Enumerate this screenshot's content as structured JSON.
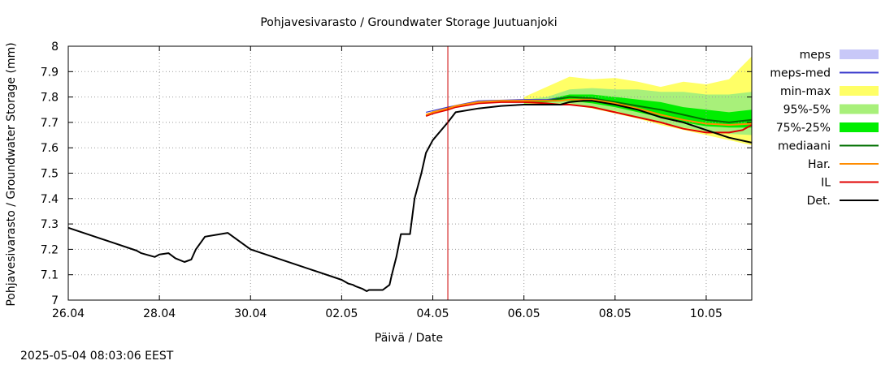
{
  "chart_data": {
    "type": "line",
    "title": "Pohjavesivarasto / Groundwater Storage   Juutuanjoki",
    "xlabel": "Päivä / Date",
    "ylabel": "Pohjavesivarasto / Groundwater Storage (mm)",
    "timestamp": "2025-05-04 08:03:06 EEST",
    "xlim": [
      0,
      15
    ],
    "ylim": [
      7.0,
      8.0
    ],
    "x_unit": "days since 26.04",
    "x_ticks": [
      {
        "x": 0,
        "label": "26.04"
      },
      {
        "x": 2,
        "label": "28.04"
      },
      {
        "x": 4,
        "label": "30.04"
      },
      {
        "x": 6,
        "label": "02.05"
      },
      {
        "x": 8,
        "label": "04.05"
      },
      {
        "x": 10,
        "label": "06.05"
      },
      {
        "x": 12,
        "label": "08.05"
      },
      {
        "x": 14,
        "label": "10.05"
      }
    ],
    "y_ticks": [
      {
        "y": 7.0,
        "label": "7"
      },
      {
        "y": 7.1,
        "label": "7.1"
      },
      {
        "y": 7.2,
        "label": "7.2"
      },
      {
        "y": 7.3,
        "label": "7.3"
      },
      {
        "y": 7.4,
        "label": "7.4"
      },
      {
        "y": 7.5,
        "label": "7.5"
      },
      {
        "y": 7.6,
        "label": "7.6"
      },
      {
        "y": 7.7,
        "label": "7.7"
      },
      {
        "y": 7.8,
        "label": "7.8"
      },
      {
        "y": 7.9,
        "label": "7.9"
      },
      {
        "y": 8.0,
        "label": "8"
      }
    ],
    "grid": true,
    "legend_position": "right",
    "current_time_x": 8.33,
    "colors": {
      "meps": "#c8c8f8",
      "meps_med": "#3c3ccc",
      "minmax": "#ffff66",
      "p95_5": "#a8f07a",
      "p75_25": "#00ee00",
      "mediaani": "#007000",
      "har": "#ff8c00",
      "il": "#e00000",
      "det": "#000000",
      "vline": "#cc0000",
      "grid": "#999999"
    },
    "legend": [
      {
        "key": "meps",
        "label": "meps",
        "style": "fill"
      },
      {
        "key": "meps_med",
        "label": "meps-med",
        "style": "line"
      },
      {
        "key": "minmax",
        "label": "min-max",
        "style": "fill"
      },
      {
        "key": "p95_5",
        "label": "95%-5%",
        "style": "fill"
      },
      {
        "key": "p75_25",
        "label": "75%-25%",
        "style": "fill"
      },
      {
        "key": "mediaani",
        "label": "mediaani",
        "style": "line"
      },
      {
        "key": "har",
        "label": "Har.",
        "style": "line"
      },
      {
        "key": "il",
        "label": "IL",
        "style": "line"
      },
      {
        "key": "det",
        "label": "Det.",
        "style": "line"
      }
    ],
    "bands": [
      {
        "name": "min-max",
        "key": "minmax",
        "x": [
          10.0,
          10.5,
          11.0,
          11.5,
          12.0,
          12.5,
          13.0,
          13.5,
          14.0,
          14.5,
          15.0
        ],
        "upper": [
          7.8,
          7.84,
          7.88,
          7.87,
          7.875,
          7.86,
          7.84,
          7.86,
          7.85,
          7.87,
          7.96
        ],
        "lower": [
          7.77,
          7.77,
          7.77,
          7.755,
          7.735,
          7.715,
          7.69,
          7.67,
          7.65,
          7.63,
          7.61
        ]
      },
      {
        "name": "95%-5%",
        "key": "p95_5",
        "x": [
          10.0,
          10.5,
          11.0,
          11.5,
          12.0,
          12.5,
          13.0,
          13.5,
          14.0,
          14.5,
          15.0
        ],
        "upper": [
          7.79,
          7.8,
          7.83,
          7.835,
          7.83,
          7.83,
          7.82,
          7.82,
          7.81,
          7.81,
          7.82
        ],
        "lower": [
          7.775,
          7.775,
          7.775,
          7.76,
          7.745,
          7.72,
          7.7,
          7.68,
          7.665,
          7.655,
          7.65
        ]
      },
      {
        "name": "75%-25%",
        "key": "p75_25",
        "x": [
          10.0,
          10.5,
          11.0,
          11.5,
          12.0,
          12.5,
          13.0,
          13.5,
          14.0,
          14.5,
          15.0
        ],
        "upper": [
          7.785,
          7.79,
          7.81,
          7.81,
          7.8,
          7.79,
          7.78,
          7.76,
          7.75,
          7.74,
          7.75
        ],
        "lower": [
          7.775,
          7.78,
          7.785,
          7.775,
          7.76,
          7.74,
          7.72,
          7.7,
          7.685,
          7.68,
          7.68
        ]
      }
    ],
    "series": [
      {
        "name": "Det.",
        "key": "det",
        "width": 2,
        "x": [
          0.0,
          0.5,
          1.0,
          1.5,
          1.6,
          1.7,
          1.9,
          2.0,
          2.2,
          2.35,
          2.55,
          2.7,
          2.8,
          3.0,
          3.5,
          4.0,
          4.5,
          5.0,
          5.5,
          6.0,
          6.15,
          6.25,
          6.3,
          6.45,
          6.55,
          6.6,
          6.9,
          6.9,
          7.05,
          7.1,
          7.2,
          7.3,
          7.35,
          7.5,
          7.6,
          7.75,
          7.85,
          8.0,
          8.33,
          8.5,
          9.0,
          9.5,
          10.0,
          10.5,
          10.8,
          11.0,
          11.3,
          11.5,
          12.0,
          12.5,
          13.0,
          13.5,
          14.0,
          14.5,
          15.0
        ],
        "y": [
          7.285,
          7.255,
          7.225,
          7.195,
          7.185,
          7.18,
          7.17,
          7.18,
          7.185,
          7.165,
          7.15,
          7.16,
          7.2,
          7.25,
          7.265,
          7.2,
          7.17,
          7.14,
          7.11,
          7.08,
          7.065,
          7.06,
          7.055,
          7.045,
          7.035,
          7.04,
          7.04,
          7.04,
          7.06,
          7.1,
          7.17,
          7.26,
          7.26,
          7.26,
          7.4,
          7.5,
          7.58,
          7.63,
          7.7,
          7.74,
          7.755,
          7.765,
          7.77,
          7.77,
          7.77,
          7.78,
          7.785,
          7.785,
          7.77,
          7.75,
          7.72,
          7.7,
          7.67,
          7.64,
          7.62
        ]
      },
      {
        "name": "Har.",
        "key": "har",
        "width": 2,
        "x": [
          7.85,
          8.0,
          8.33,
          8.5,
          9.0,
          9.5,
          10.0,
          10.5,
          10.8,
          11.0,
          11.3,
          11.5,
          12.0,
          12.5,
          13.0,
          13.5,
          14.0,
          14.5,
          15.0
        ],
        "y": [
          7.73,
          7.74,
          7.755,
          7.765,
          7.78,
          7.785,
          7.785,
          7.785,
          7.785,
          7.79,
          7.79,
          7.79,
          7.775,
          7.755,
          7.73,
          7.71,
          7.695,
          7.69,
          7.695
        ]
      },
      {
        "name": "IL",
        "key": "il",
        "width": 2,
        "x": [
          7.85,
          8.0,
          8.33,
          8.5,
          9.0,
          9.5,
          10.0,
          10.5,
          10.8,
          11.0,
          11.5,
          12.0,
          12.5,
          13.0,
          13.5,
          14.0,
          14.5,
          14.8,
          15.0
        ],
        "y": [
          7.725,
          7.735,
          7.75,
          7.76,
          7.775,
          7.78,
          7.78,
          7.775,
          7.77,
          7.77,
          7.76,
          7.74,
          7.72,
          7.7,
          7.675,
          7.66,
          7.66,
          7.67,
          7.69
        ]
      },
      {
        "name": "mediaani",
        "key": "mediaani",
        "width": 2,
        "x": [
          10.0,
          10.5,
          11.0,
          11.5,
          12.0,
          12.5,
          13.0,
          13.5,
          14.0,
          14.5,
          15.0
        ],
        "y": [
          7.785,
          7.785,
          7.8,
          7.795,
          7.78,
          7.765,
          7.75,
          7.73,
          7.71,
          7.7,
          7.71
        ]
      },
      {
        "name": "meps-med",
        "key": "meps_med",
        "width": 1.2,
        "x": [
          7.85,
          8.33,
          9.0,
          10.0,
          10.5,
          11.0
        ],
        "y": [
          7.74,
          7.76,
          7.785,
          7.79,
          7.79,
          7.8
        ]
      }
    ]
  }
}
